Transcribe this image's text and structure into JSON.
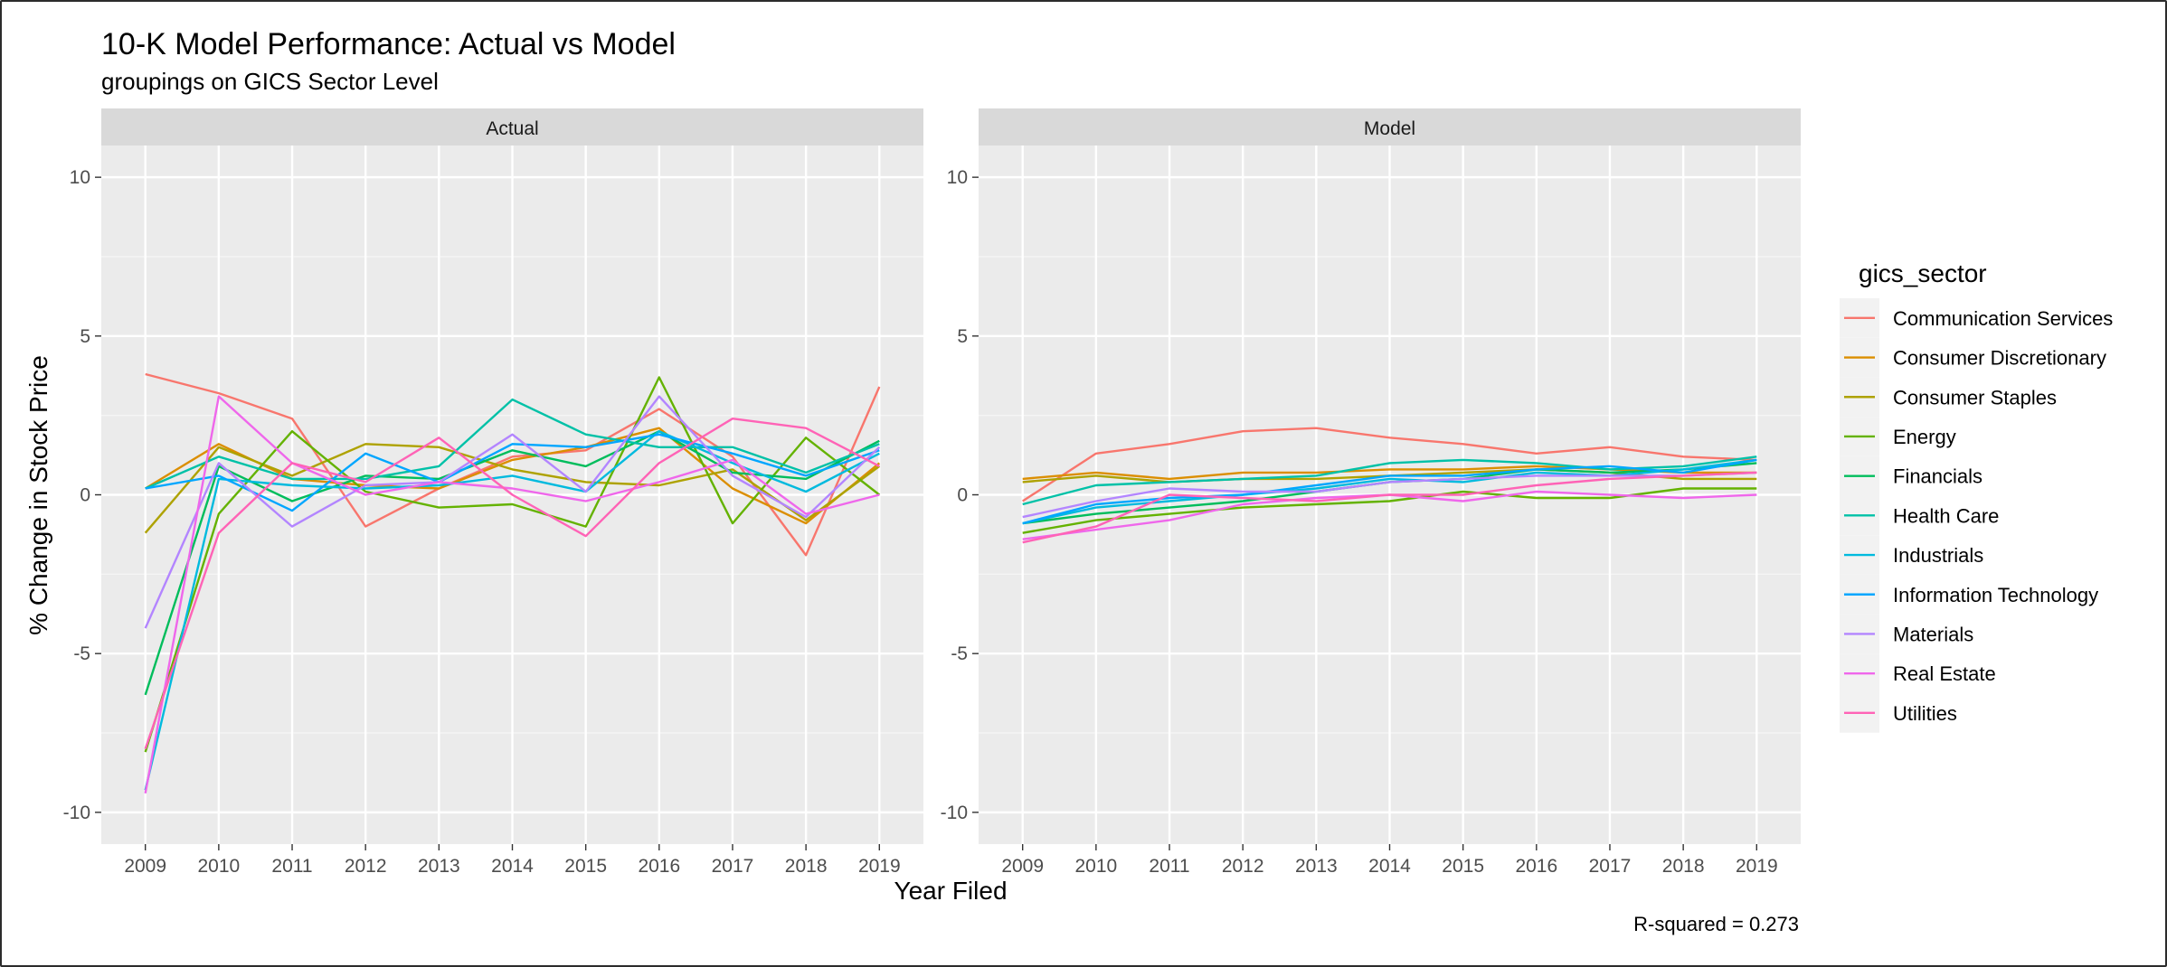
{
  "chart_data": {
    "type": "line",
    "title": "10-K Model Performance: Actual vs Model",
    "subtitle": "groupings on GICS Sector Level",
    "xlabel": "Year Filed",
    "ylabel": "% Change in Stock Price",
    "caption": "R-squared = 0.273",
    "x": [
      2009,
      2010,
      2011,
      2012,
      2013,
      2014,
      2015,
      2016,
      2017,
      2018,
      2019
    ],
    "ylim": [
      -11,
      11
    ],
    "yticks": [
      -10,
      -5,
      0,
      5,
      10
    ],
    "grid": true,
    "legend": {
      "title": "gics_sector",
      "position": "right",
      "entries": [
        {
          "name": "Communication Services",
          "color": "#F8766D"
        },
        {
          "name": "Consumer Discretionary",
          "color": "#DB8E00"
        },
        {
          "name": "Consumer Staples",
          "color": "#AEA200"
        },
        {
          "name": "Energy",
          "color": "#64B200"
        },
        {
          "name": "Financials",
          "color": "#00BD5C"
        },
        {
          "name": "Health Care",
          "color": "#00C1A7"
        },
        {
          "name": "Industrials",
          "color": "#00BADE"
        },
        {
          "name": "Information Technology",
          "color": "#00A6FF"
        },
        {
          "name": "Materials",
          "color": "#B385FF"
        },
        {
          "name": "Real Estate",
          "color": "#EF67EB"
        },
        {
          "name": "Utilities",
          "color": "#FF63B6"
        }
      ]
    },
    "panels": [
      {
        "label": "Actual",
        "series": [
          {
            "name": "Communication Services",
            "values": [
              3.8,
              3.2,
              2.4,
              -1.0,
              0.2,
              1.2,
              1.4,
              2.7,
              1.2,
              -1.9,
              3.4
            ]
          },
          {
            "name": "Consumer Discretionary",
            "values": [
              0.2,
              1.6,
              0.5,
              0.3,
              0.2,
              1.1,
              1.5,
              2.1,
              0.2,
              -0.9,
              1.0
            ]
          },
          {
            "name": "Consumer Staples",
            "values": [
              -1.2,
              1.5,
              0.6,
              1.6,
              1.5,
              0.8,
              0.4,
              0.3,
              0.8,
              -0.8,
              0.9
            ]
          },
          {
            "name": "Energy",
            "values": [
              -8.1,
              -0.6,
              2.0,
              0.1,
              -0.4,
              -0.3,
              -1.0,
              3.7,
              -0.9,
              1.8,
              0.0
            ]
          },
          {
            "name": "Financials",
            "values": [
              -6.3,
              0.9,
              -0.2,
              0.6,
              0.5,
              1.4,
              0.9,
              2.0,
              0.7,
              0.5,
              1.7
            ]
          },
          {
            "name": "Health Care",
            "values": [
              0.2,
              1.2,
              0.5,
              0.5,
              0.9,
              3.0,
              1.9,
              1.5,
              1.5,
              0.7,
              1.6
            ]
          },
          {
            "name": "Industrials",
            "values": [
              -9.3,
              0.5,
              0.3,
              0.2,
              0.3,
              0.6,
              0.1,
              2.0,
              1.0,
              0.1,
              1.3
            ]
          },
          {
            "name": "Information Technology",
            "values": [
              0.2,
              0.6,
              -0.5,
              1.3,
              0.4,
              1.6,
              1.5,
              1.9,
              1.3,
              0.6,
              1.4
            ]
          },
          {
            "name": "Materials",
            "values": [
              -4.2,
              1.0,
              -1.0,
              0.3,
              0.4,
              1.9,
              0.1,
              3.1,
              0.6,
              -0.7,
              1.5
            ]
          },
          {
            "name": "Real Estate",
            "values": [
              -9.4,
              3.1,
              1.0,
              0.0,
              0.4,
              0.2,
              -0.2,
              0.4,
              1.1,
              -0.6,
              0.0
            ]
          },
          {
            "name": "Utilities",
            "values": [
              -8.0,
              -1.2,
              1.0,
              0.4,
              1.8,
              0.0,
              -1.3,
              1.0,
              2.4,
              2.1,
              0.9
            ]
          }
        ]
      },
      {
        "label": "Model",
        "series": [
          {
            "name": "Communication Services",
            "values": [
              -0.2,
              1.3,
              1.6,
              2.0,
              2.1,
              1.8,
              1.6,
              1.3,
              1.5,
              1.2,
              1.1
            ]
          },
          {
            "name": "Consumer Discretionary",
            "values": [
              0.5,
              0.7,
              0.5,
              0.7,
              0.7,
              0.8,
              0.8,
              0.9,
              0.8,
              0.7,
              0.7
            ]
          },
          {
            "name": "Consumer Staples",
            "values": [
              0.4,
              0.6,
              0.4,
              0.5,
              0.5,
              0.6,
              0.7,
              0.8,
              0.7,
              0.5,
              0.5
            ]
          },
          {
            "name": "Energy",
            "values": [
              -1.2,
              -0.8,
              -0.6,
              -0.4,
              -0.3,
              -0.2,
              0.1,
              -0.1,
              -0.1,
              0.2,
              0.2
            ]
          },
          {
            "name": "Financials",
            "values": [
              -0.9,
              -0.6,
              -0.4,
              -0.2,
              0.1,
              0.4,
              0.5,
              0.8,
              0.7,
              0.8,
              1.0
            ]
          },
          {
            "name": "Health Care",
            "values": [
              -0.3,
              0.3,
              0.4,
              0.5,
              0.6,
              1.0,
              1.1,
              1.0,
              0.8,
              0.9,
              1.2
            ]
          },
          {
            "name": "Industrials",
            "values": [
              -0.9,
              -0.4,
              -0.2,
              0.0,
              0.2,
              0.5,
              0.4,
              0.7,
              0.6,
              0.8,
              1.1
            ]
          },
          {
            "name": "Information Technology",
            "values": [
              -0.9,
              -0.3,
              -0.1,
              0.0,
              0.3,
              0.6,
              0.6,
              0.8,
              0.9,
              0.7,
              1.1
            ]
          },
          {
            "name": "Materials",
            "values": [
              -0.7,
              -0.2,
              0.2,
              0.1,
              0.1,
              0.4,
              0.5,
              0.6,
              0.6,
              0.6,
              0.7
            ]
          },
          {
            "name": "Real Estate",
            "values": [
              -1.4,
              -1.1,
              -0.8,
              -0.3,
              -0.1,
              0.0,
              -0.2,
              0.1,
              0.0,
              -0.1,
              0.0
            ]
          },
          {
            "name": "Utilities",
            "values": [
              -1.5,
              -1.0,
              0.0,
              -0.1,
              -0.2,
              0.0,
              0.0,
              0.3,
              0.5,
              0.6,
              0.7
            ]
          }
        ]
      }
    ]
  }
}
